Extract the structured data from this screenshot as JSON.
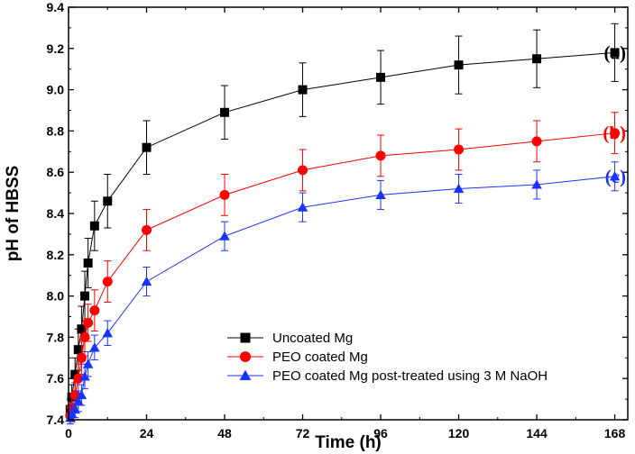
{
  "chart_data": {
    "type": "line",
    "title": "",
    "xlabel": "Time (h)",
    "ylabel": "pH of HBSS",
    "xlim": [
      0,
      172
    ],
    "ylim": [
      7.4,
      9.4
    ],
    "xticks": [
      0,
      24,
      48,
      72,
      96,
      120,
      144,
      168
    ],
    "yticks": [
      "7.4",
      "7.6",
      "7.8",
      "8.0",
      "8.2",
      "8.4",
      "8.6",
      "8.8",
      "9.0",
      "9.2",
      "9.4"
    ],
    "grid": false,
    "legend_position": "bottom-right",
    "series": [
      {
        "name": "Uncoated Mg",
        "color": "#000000",
        "marker": "square",
        "x": [
          0.5,
          1,
          2,
          3,
          4,
          5,
          6,
          8,
          12,
          24,
          48,
          72,
          96,
          120,
          144,
          168
        ],
        "y": [
          7.45,
          7.51,
          7.62,
          7.74,
          7.84,
          8.0,
          8.16,
          8.34,
          8.46,
          8.72,
          8.89,
          9.0,
          9.06,
          9.12,
          9.15,
          9.18
        ],
        "err": [
          0.05,
          0.06,
          0.08,
          0.1,
          0.11,
          0.12,
          0.12,
          0.12,
          0.13,
          0.13,
          0.13,
          0.13,
          0.13,
          0.14,
          0.14,
          0.14
        ]
      },
      {
        "name": "PEO coated Mg",
        "color": "#ff0000",
        "marker": "circle",
        "x": [
          0.5,
          1,
          2,
          3,
          4,
          5,
          6,
          8,
          12,
          24,
          48,
          72,
          96,
          120,
          144,
          168
        ],
        "y": [
          7.42,
          7.46,
          7.52,
          7.6,
          7.7,
          7.8,
          7.87,
          7.93,
          8.07,
          8.32,
          8.49,
          8.61,
          8.68,
          8.71,
          8.75,
          8.79
        ],
        "err": [
          0.04,
          0.05,
          0.06,
          0.07,
          0.08,
          0.09,
          0.09,
          0.1,
          0.1,
          0.1,
          0.1,
          0.1,
          0.1,
          0.1,
          0.1,
          0.1
        ]
      },
      {
        "name": "PEO coated Mg post-treated using 3 M NaOH",
        "color": "#1a33ff",
        "marker": "triangle",
        "x": [
          0.5,
          1,
          2,
          3,
          4,
          5,
          6,
          8,
          12,
          24,
          48,
          72,
          96,
          120,
          144,
          168
        ],
        "y": [
          7.41,
          7.43,
          7.45,
          7.49,
          7.52,
          7.61,
          7.67,
          7.75,
          7.82,
          8.07,
          8.29,
          8.43,
          8.49,
          8.52,
          8.54,
          8.58
        ],
        "err": [
          0.03,
          0.04,
          0.04,
          0.05,
          0.05,
          0.06,
          0.06,
          0.06,
          0.06,
          0.07,
          0.07,
          0.07,
          0.07,
          0.07,
          0.07,
          0.07
        ]
      }
    ],
    "annotations": [
      {
        "text": "(a)",
        "series": 0
      },
      {
        "text": "(b)",
        "series": 1
      },
      {
        "text": "(c)",
        "series": 2
      }
    ]
  }
}
